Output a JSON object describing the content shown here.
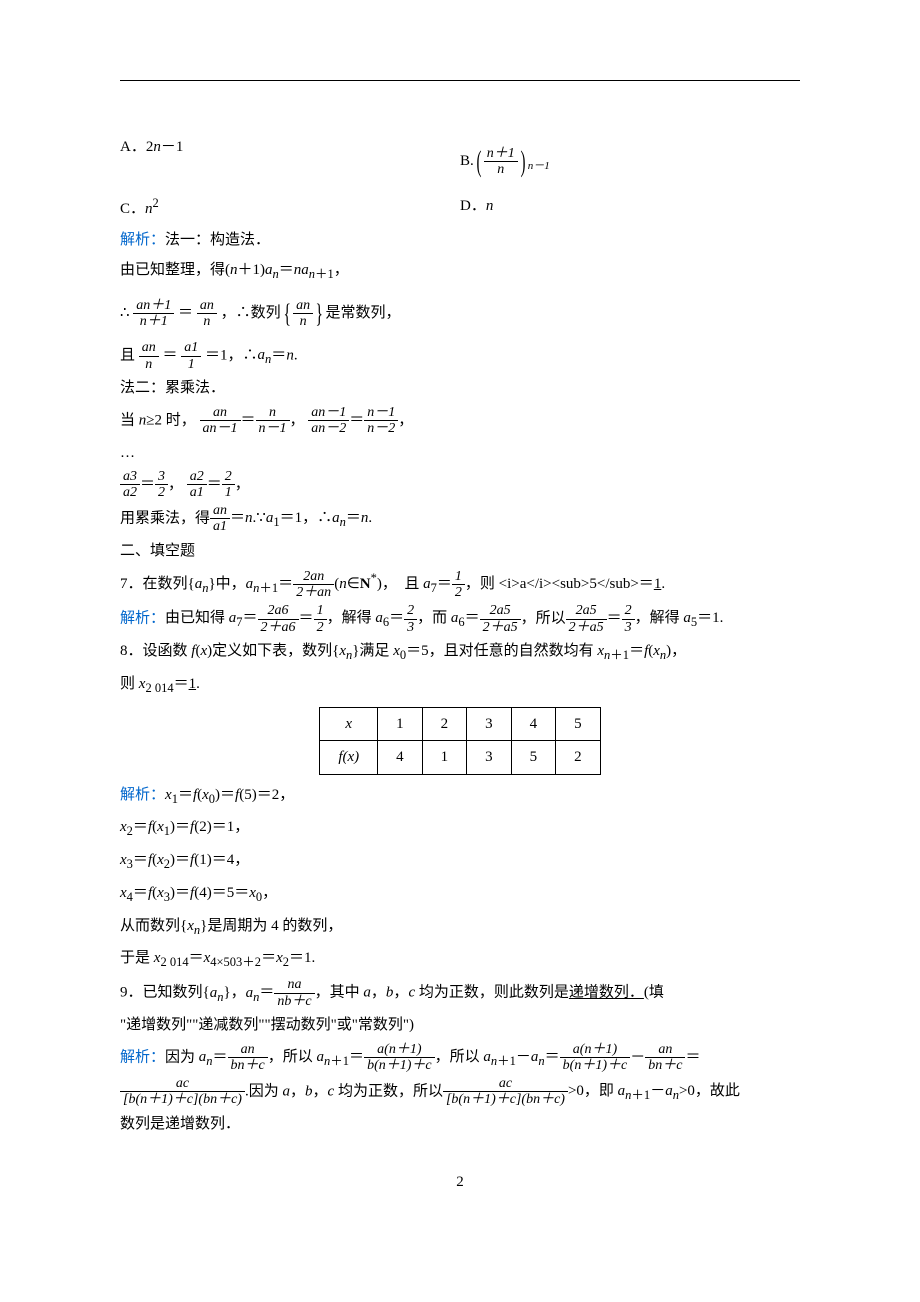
{
  "options": {
    "A": "A．2<i>n</i>－1",
    "B_prefix": "B.",
    "B_frac_num": "n＋1",
    "B_frac_den": "n",
    "B_sub": "n－1",
    "C": "C．<i>n</i><sup>2</sup>",
    "D": "D．<i>n</i>"
  },
  "sol1": {
    "header": "解析：",
    "m1": "法一：构造法．",
    "l1": "由已知整理，得(<i>n</i>＋1)<i>a<sub>n</sub></i>＝<i>na</i><sub><i>n</i>＋1</sub>，",
    "l2_pre": "∴",
    "f1n": "an＋1",
    "f1d": "n＋1",
    "eq1": "＝",
    "f2n": "an",
    "f2d": "n",
    "l2_mid": "，∴数列",
    "f3n": "an",
    "f3d": "n",
    "l2_post": "是常数列，",
    "l3_pre": "且",
    "f4n": "an",
    "f4d": "n",
    "eq2": "＝",
    "f5n": "a1",
    "f5d": "1",
    "l3_post": "＝1，∴<i>a<sub>n</sub></i>＝<i>n</i>.",
    "m2": "法二：累乘法．",
    "l4_pre": "当 <i>n</i>≥2 时，",
    "f6n": "an",
    "f6d": "an－1",
    "eq3": "＝",
    "f7n": "n",
    "f7d": "n－1",
    "comma": "，",
    "f8n": "an－1",
    "f8d": "an－2",
    "eq4": "＝",
    "f9n": "n－1",
    "f9d": "n－2",
    "l4_post": "，",
    "dots": "…",
    "f10n": "a3",
    "f10d": "a2",
    "eq5": "＝",
    "f11n": "3",
    "f11d": "2",
    "f12n": "a2",
    "f12d": "a1",
    "eq6": "＝",
    "f13n": "2",
    "f13d": "1",
    "l5_post": "，",
    "l6_pre": "用累乘法，得",
    "f14n": "an",
    "f14d": "a1",
    "l6_post": "＝<i>n</i>.∵<i>a</i><sub>1</sub>＝1，∴<i>a<sub>n</sub></i>＝<i>n</i>."
  },
  "sec2": "二、填空题",
  "q7": {
    "pre": "7．在数列{<i>a<sub>n</sub></i>}中，<i>a</i><sub><i>n</i>＋1</sub>＝",
    "f1n": "2an",
    "f1d": "2＋an",
    "mid1": "(<i>n</i>∈<b>N</b><sup>*</sup>)，　且 <i>a</i><sub>7</sub>＝",
    "f2n": "1",
    "f2d": "2",
    "mid2": "，则 <i>a</i><sub>5</sub>＝",
    "ans": "1",
    "post": "."
  },
  "sol7": {
    "header": "解析：",
    "l1_pre": "由已知得 <i>a</i><sub>7</sub>＝",
    "f1n": "2a6",
    "f1d": "2＋a6",
    "eq1": "＝",
    "f2n": "1",
    "f2d": "2",
    "l1_mid1": "，解得 <i>a</i><sub>6</sub>＝",
    "f3n": "2",
    "f3d": "3",
    "l1_mid2": "，而 <i>a</i><sub>6</sub>＝",
    "f4n": "2a5",
    "f4d": "2＋a5",
    "l1_mid3": "，所以",
    "f5n": "2a5",
    "f5d": "2＋a5",
    "eq2": "＝",
    "f6n": "2",
    "f6d": "3",
    "l1_post": "，解得 <i>a</i><sub>5</sub>＝1."
  },
  "q8": {
    "text": "8．设函数 <i>f</i>(<i>x</i>)定义如下表，数列{<i>x<sub>n</sub></i>}满足 <i>x</i><sub>0</sub>＝5，且对任意的自然数均有 <i>x</i><sub><i>n</i>＋1</sub>＝<i>f</i>(<i>x<sub>n</sub></i>)，",
    "text2": "则 <i>x</i><sub>2 014</sub>＝",
    "ans": "1",
    "post": "."
  },
  "table": {
    "h": [
      "x",
      "1",
      "2",
      "3",
      "4",
      "5"
    ],
    "r": [
      "f(x)",
      "4",
      "1",
      "3",
      "5",
      "2"
    ]
  },
  "sol8": {
    "header": "解析：",
    "l1": "<i>x</i><sub>1</sub>＝<i>f</i>(<i>x</i><sub>0</sub>)＝<i>f</i>(5)＝2，",
    "l2": "<i>x</i><sub>2</sub>＝<i>f</i>(<i>x</i><sub>1</sub>)＝<i>f</i>(2)＝1，",
    "l3": "<i>x</i><sub>3</sub>＝<i>f</i>(<i>x</i><sub>2</sub>)＝<i>f</i>(1)＝4，",
    "l4": "<i>x</i><sub>4</sub>＝<i>f</i>(<i>x</i><sub>3</sub>)＝<i>f</i>(4)＝5＝<i>x</i><sub>0</sub>，",
    "l5": "从而数列{<i>x<sub>n</sub></i>}是周期为 4 的数列，",
    "l6": "于是 <i>x</i><sub>2 014</sub>＝<i>x</i><sub>4×503＋2</sub>＝<i>x</i><sub>2</sub>＝1."
  },
  "q9": {
    "pre": "9．已知数列{<i>a<sub>n</sub></i>}，<i>a<sub>n</sub></i>＝",
    "f1n": "na",
    "f1d": "nb＋c",
    "mid": "，其中 <i>a</i>，<i>b</i>，<i>c</i> 均为正数，则此数列是",
    "ans": "递增数列．",
    "post": "(填",
    "line2": "\"递增数列\"\"递减数列\"\"摆动数列\"或\"常数列\")"
  },
  "sol9": {
    "header": "解析：",
    "l1_pre": "因为 <i>a<sub>n</sub></i>＝",
    "f1n": "an",
    "f1d": "bn＋c",
    "l1_mid1": "，所以 <i>a</i><sub><i>n</i>＋1</sub>＝",
    "f2n": "a(n＋1)",
    "f2d": "b(n＋1)＋c",
    "l1_mid2": "，所以 <i>a</i><sub><i>n</i>＋1</sub>－<i>a<sub>n</sub></i>＝",
    "f3n": "a(n＋1)",
    "f3d": "b(n＋1)＋c",
    "minus": "－",
    "f4n": "an",
    "f4d": "bn＋c",
    "eq": "＝",
    "f5n": "ac",
    "f5d": "[b(n＋1)＋c](bn＋c)",
    "l2_mid": ".因为 <i>a</i>，<i>b</i>，<i>c</i> 均为正数，所以",
    "f6n": "ac",
    "f6d": "[b(n＋1)＋c](bn＋c)",
    "l2_post": ">0，即 <i>a</i><sub><i>n</i>＋1</sub>－<i>a<sub>n</sub></i>>0，故此",
    "l3": "数列是递增数列．"
  },
  "pagenum": "2"
}
